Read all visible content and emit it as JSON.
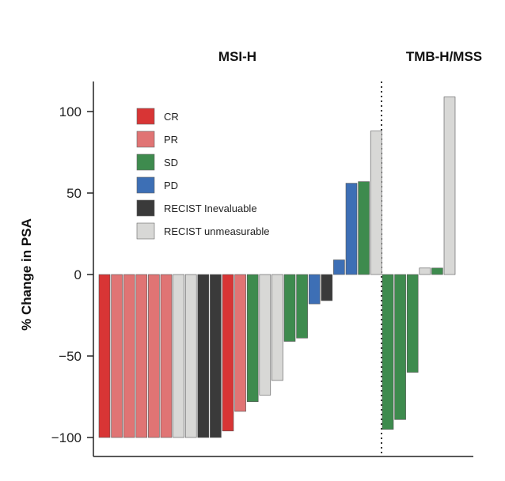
{
  "chart_data": {
    "type": "bar",
    "ylabel": "% Change in PSA",
    "ylim": [
      -100,
      110
    ],
    "yticks": [
      100,
      50,
      0,
      -50,
      -100
    ],
    "ytick_labels": [
      "100",
      "50",
      "0",
      "−50",
      "−100"
    ],
    "grid": false,
    "legend_position": "top-left",
    "legend": [
      {
        "key": "CR",
        "label": "CR",
        "color": "#d83535"
      },
      {
        "key": "PR",
        "label": "PR",
        "color": "#e07474"
      },
      {
        "key": "SD",
        "label": "SD",
        "color": "#3e8b4e"
      },
      {
        "key": "PD",
        "label": "PD",
        "color": "#3d6fb5"
      },
      {
        "key": "INE",
        "label": "RECIST Inevaluable",
        "color": "#3a3a3a"
      },
      {
        "key": "UNM",
        "label": "RECIST unmeasurable",
        "color": "#d8d8d6"
      }
    ],
    "groups": [
      {
        "label": "MSI-H",
        "bars": [
          {
            "value": -100,
            "category": "CR"
          },
          {
            "value": -100,
            "category": "PR"
          },
          {
            "value": -100,
            "category": "PR"
          },
          {
            "value": -100,
            "category": "PR"
          },
          {
            "value": -100,
            "category": "PR"
          },
          {
            "value": -100,
            "category": "PR"
          },
          {
            "value": -100,
            "category": "UNM"
          },
          {
            "value": -100,
            "category": "UNM"
          },
          {
            "value": -100,
            "category": "INE"
          },
          {
            "value": -100,
            "category": "INE"
          },
          {
            "value": -96,
            "category": "CR"
          },
          {
            "value": -84,
            "category": "PR"
          },
          {
            "value": -78,
            "category": "SD"
          },
          {
            "value": -74,
            "category": "UNM"
          },
          {
            "value": -65,
            "category": "UNM"
          },
          {
            "value": -41,
            "category": "SD"
          },
          {
            "value": -39,
            "category": "SD"
          },
          {
            "value": -18,
            "category": "PD"
          },
          {
            "value": -16,
            "category": "INE"
          },
          {
            "value": 9,
            "category": "PD"
          },
          {
            "value": 56,
            "category": "PD"
          },
          {
            "value": 57,
            "category": "SD"
          },
          {
            "value": 88,
            "category": "UNM"
          }
        ]
      },
      {
        "label": "TMB-H/MSS",
        "bars": [
          {
            "value": -95,
            "category": "SD"
          },
          {
            "value": -89,
            "category": "SD"
          },
          {
            "value": -60,
            "category": "SD"
          },
          {
            "value": 4,
            "category": "UNM"
          },
          {
            "value": 4,
            "category": "SD"
          },
          {
            "value": 109,
            "category": "UNM"
          }
        ]
      }
    ]
  }
}
